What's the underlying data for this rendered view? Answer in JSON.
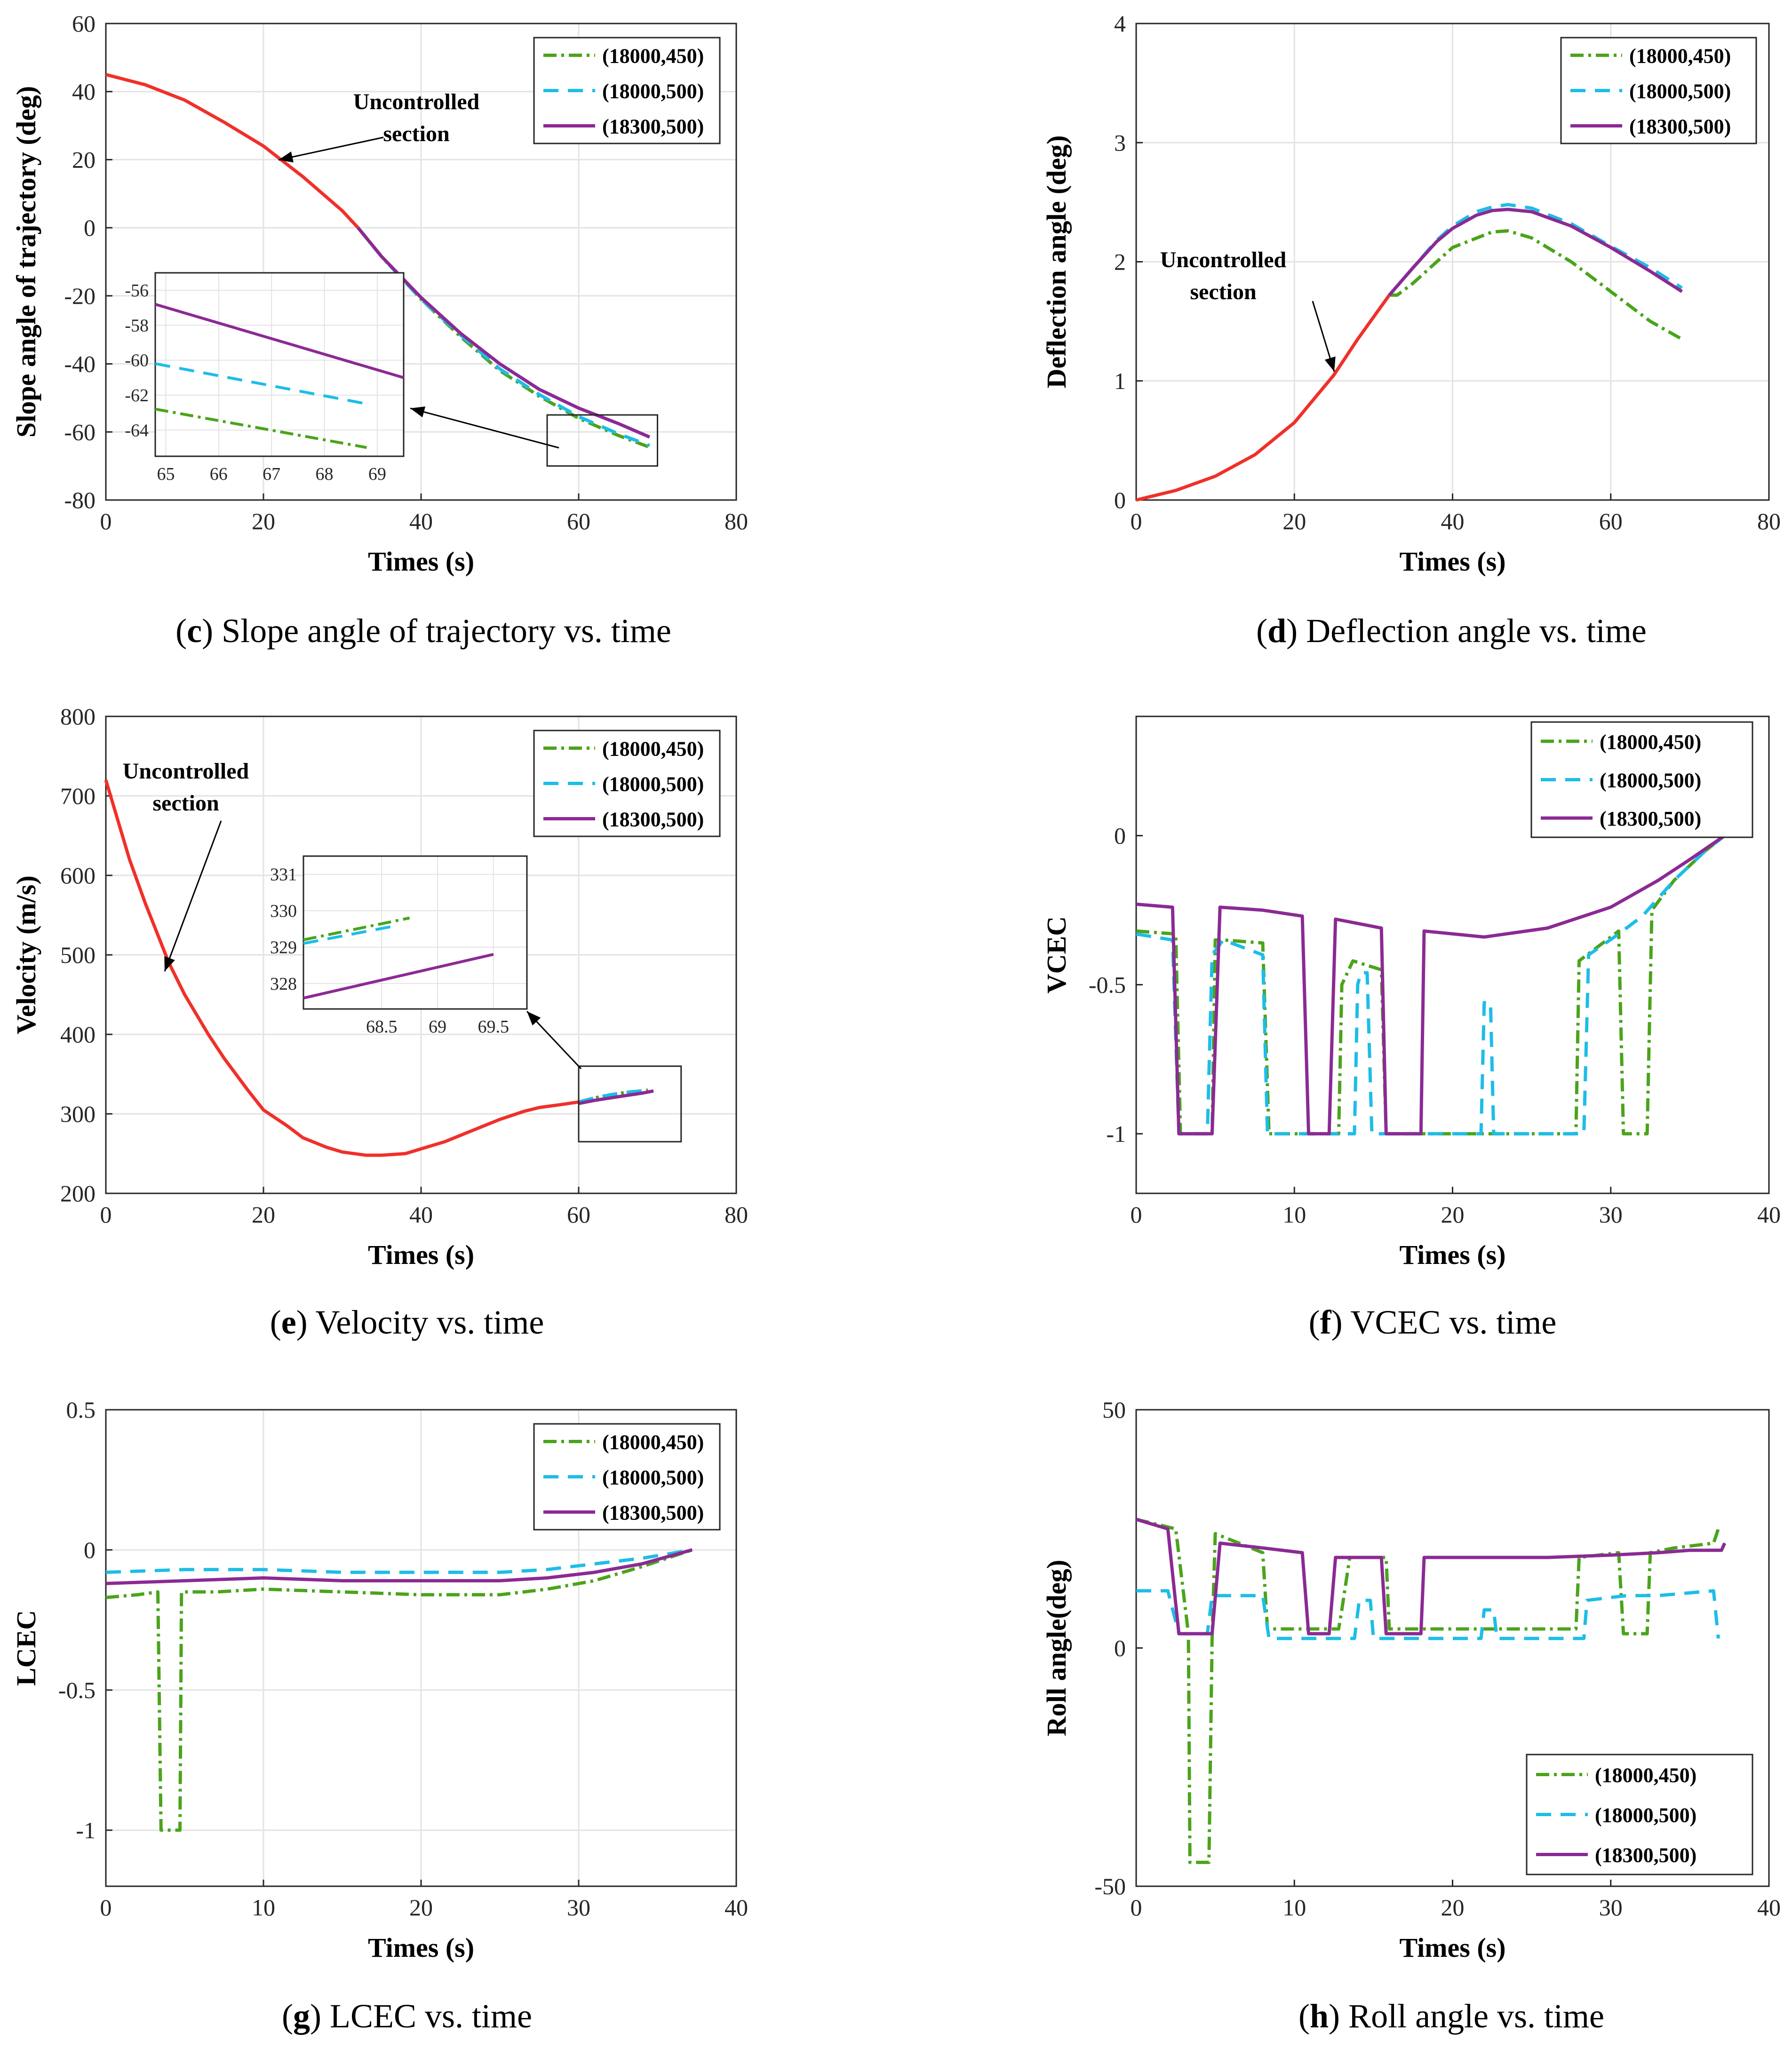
{
  "colors": {
    "series_450": "#4aa41a",
    "series_500": "#1dbde8",
    "series_18300": "#8b2a94",
    "uncontrolled": "#f0302a",
    "grid": "#e3e3e3",
    "axis": "#262626"
  },
  "legend_labels": [
    "(18000,450)",
    "(18000,500)",
    "(18300,500)"
  ],
  "chart_data": [
    {
      "id": "c",
      "type": "line",
      "caption_letter": "c",
      "caption_text": " Slope angle of trajectory vs. time",
      "xlabel": "Times (s)",
      "ylabel": "Slope angle of trajectory (deg)",
      "xlim": [
        0,
        80
      ],
      "ylim": [
        -80,
        60
      ],
      "xticks": [
        "0",
        "20",
        "40",
        "60",
        "80"
      ],
      "yticks": [
        "-80",
        "-60",
        "-40",
        "-20",
        "0",
        "20",
        "40",
        "60"
      ],
      "annotation": [
        "Uncontrolled",
        "section"
      ],
      "uncontrolled": {
        "x": [
          0,
          5,
          10,
          15,
          20,
          25,
          30,
          32
        ],
        "y": [
          45,
          42,
          37.5,
          31,
          24,
          15,
          5,
          0
        ]
      },
      "series": [
        {
          "name": "(18000,450)",
          "x": [
            32,
            35,
            40,
            45,
            50,
            55,
            60,
            65,
            69
          ],
          "y": [
            0,
            -8.5,
            -21,
            -32,
            -42,
            -49.5,
            -56,
            -61,
            -64.5
          ]
        },
        {
          "name": "(18000,500)",
          "x": [
            32,
            35,
            40,
            45,
            50,
            55,
            60,
            65,
            69
          ],
          "y": [
            0,
            -8.5,
            -21,
            -31.5,
            -41.5,
            -49,
            -55.5,
            -60.5,
            -64
          ]
        },
        {
          "name": "(18300,500)",
          "x": [
            32,
            35,
            40,
            45,
            50,
            55,
            60,
            65,
            69
          ],
          "y": [
            0,
            -8.5,
            -20.5,
            -31,
            -40,
            -47.5,
            -53,
            -57.5,
            -61.5
          ]
        }
      ],
      "inset": {
        "xlim": [
          64.8,
          69.5
        ],
        "ylim": [
          -65.5,
          -55
        ],
        "xticks": [
          "65",
          "66",
          "67",
          "68",
          "69"
        ],
        "yticks": [
          "-64",
          "-62",
          "-60",
          "-58",
          "-56"
        ],
        "series": [
          {
            "name": "(18000,450)",
            "x": [
              64.8,
              68.8
            ],
            "y": [
              -62.8,
              -65
            ]
          },
          {
            "name": "(18000,500)",
            "x": [
              64.8,
              68.8
            ],
            "y": [
              -60.2,
              -62.5
            ]
          },
          {
            "name": "(18300,500)",
            "x": [
              64.8,
              69.5
            ],
            "y": [
              -56.8,
              -61
            ]
          }
        ]
      }
    },
    {
      "id": "d",
      "type": "line",
      "caption_letter": "d",
      "caption_text": " Deflection angle vs. time",
      "xlabel": "Times (s)",
      "ylabel": "Deflection angle (deg)",
      "xlim": [
        0,
        80
      ],
      "ylim": [
        0,
        4
      ],
      "xticks": [
        "0",
        "20",
        "40",
        "60",
        "80"
      ],
      "yticks": [
        "0",
        "1",
        "2",
        "3",
        "4"
      ],
      "annotation": [
        "Uncontrolled",
        "section"
      ],
      "uncontrolled": {
        "x": [
          0,
          5,
          10,
          15,
          20,
          25,
          28,
          32
        ],
        "y": [
          0,
          0.08,
          0.2,
          0.38,
          0.65,
          1.05,
          1.35,
          1.72
        ]
      },
      "series": [
        {
          "name": "(18000,450)",
          "x": [
            32,
            33,
            35,
            38,
            40,
            45,
            47,
            50,
            55,
            60,
            65,
            69
          ],
          "y": [
            1.72,
            1.72,
            1.82,
            2.0,
            2.12,
            2.25,
            2.26,
            2.2,
            2.0,
            1.75,
            1.5,
            1.35
          ]
        },
        {
          "name": "(18000,500)",
          "x": [
            32,
            35,
            38,
            40,
            43,
            45,
            47,
            50,
            55,
            60,
            65,
            69
          ],
          "y": [
            1.72,
            1.95,
            2.18,
            2.3,
            2.42,
            2.46,
            2.48,
            2.45,
            2.32,
            2.13,
            1.95,
            1.78
          ]
        },
        {
          "name": "(18300,500)",
          "x": [
            32,
            35,
            38,
            40,
            43,
            45,
            47,
            50,
            55,
            60,
            65,
            69
          ],
          "y": [
            1.72,
            1.95,
            2.17,
            2.28,
            2.39,
            2.43,
            2.44,
            2.42,
            2.3,
            2.12,
            1.92,
            1.75
          ]
        }
      ]
    },
    {
      "id": "e",
      "type": "line",
      "caption_letter": "e",
      "caption_text": " Velocity vs. time",
      "xlabel": "Times (s)",
      "ylabel": "Velocity (m/s)",
      "xlim": [
        0,
        80
      ],
      "ylim": [
        200,
        800
      ],
      "xticks": [
        "0",
        "20",
        "40",
        "60",
        "80"
      ],
      "yticks": [
        "200",
        "300",
        "400",
        "500",
        "600",
        "700",
        "800"
      ],
      "annotation": [
        "Uncontrolled",
        "section"
      ],
      "uncontrolled": {
        "x": [
          0,
          3,
          5,
          8,
          10,
          13,
          15,
          18,
          20,
          23,
          25,
          28,
          30,
          33,
          35,
          38,
          40,
          43,
          45,
          48,
          50,
          53,
          55,
          58,
          60
        ],
        "y": [
          720,
          620,
          565,
          490,
          450,
          400,
          370,
          330,
          305,
          285,
          270,
          258,
          252,
          248,
          248,
          250,
          256,
          265,
          273,
          285,
          293,
          303,
          308,
          312,
          315
        ]
      },
      "series": [
        {
          "name": "(18000,450)",
          "x": [
            60,
            62,
            64,
            66,
            68.8
          ],
          "y": [
            315,
            320,
            324,
            327,
            329.8
          ]
        },
        {
          "name": "(18000,500)",
          "x": [
            60,
            62,
            64,
            66,
            68.8
          ],
          "y": [
            315,
            320,
            324,
            327,
            329.6
          ]
        },
        {
          "name": "(18300,500)",
          "x": [
            60,
            62,
            64,
            66,
            68,
            69.5
          ],
          "y": [
            313,
            317,
            320,
            323,
            326,
            328.8
          ]
        }
      ],
      "inset": {
        "xlim": [
          67.8,
          69.8
        ],
        "ylim": [
          327.3,
          331.5
        ],
        "xticks": [
          "68.5",
          "69",
          "69.5"
        ],
        "yticks": [
          "328",
          "329",
          "330",
          "331"
        ],
        "series": [
          {
            "name": "(18000,450)",
            "x": [
              67.8,
              68.75
            ],
            "y": [
              329.2,
              329.8
            ]
          },
          {
            "name": "(18000,500)",
            "x": [
              67.8,
              68.65
            ],
            "y": [
              329.1,
              329.6
            ]
          },
          {
            "name": "(18300,500)",
            "x": [
              67.8,
              69.5
            ],
            "y": [
              327.6,
              328.8
            ]
          }
        ]
      }
    },
    {
      "id": "f",
      "type": "line",
      "caption_letter": "f",
      "caption_text": " VCEC vs. time",
      "xlabel": "Times (s)",
      "ylabel": "VCEC",
      "xlim": [
        0,
        40
      ],
      "ylim": [
        -1.2,
        0.4
      ],
      "xticks": [
        "0",
        "10",
        "20",
        "30",
        "40"
      ],
      "yticks": [
        "-1",
        "-0.5",
        "0"
      ],
      "series": [
        {
          "name": "(18000,450)",
          "x": [
            0,
            2.5,
            2.8,
            4.8,
            5.0,
            5.5,
            8.0,
            8.4,
            12.8,
            13.0,
            13.7,
            15.5,
            15.8,
            27.8,
            28.0,
            30.5,
            30.8,
            32.3,
            32.6,
            34,
            36,
            37.2
          ],
          "y": [
            -0.32,
            -0.33,
            -1,
            -1,
            -0.35,
            -0.35,
            -0.36,
            -1,
            -1,
            -0.5,
            -0.42,
            -0.45,
            -1,
            -1,
            -0.42,
            -0.32,
            -1,
            -1,
            -0.25,
            -0.15,
            -0.05,
            0
          ]
        },
        {
          "name": "(18000,500)",
          "x": [
            0,
            2.3,
            2.7,
            4.5,
            4.8,
            5.5,
            8.0,
            8.3,
            13.8,
            14.0,
            14.2,
            14.6,
            14.9,
            21.8,
            22.0,
            22.4,
            22.6,
            28.3,
            28.6,
            30.5,
            32,
            34,
            36,
            37.2
          ],
          "y": [
            -0.33,
            -0.35,
            -1,
            -1,
            -0.4,
            -0.35,
            -0.4,
            -1,
            -1,
            -0.5,
            -0.46,
            -0.46,
            -1,
            -1,
            -0.56,
            -0.56,
            -1,
            -1,
            -0.4,
            -0.33,
            -0.27,
            -0.15,
            -0.05,
            0
          ]
        },
        {
          "name": "(18300,500)",
          "x": [
            0,
            2.3,
            2.7,
            4.8,
            5.3,
            8.0,
            10.5,
            10.9,
            12.2,
            12.6,
            15.5,
            15.8,
            18.0,
            18.2,
            22,
            26,
            30,
            33,
            35,
            37.2
          ],
          "y": [
            -0.23,
            -0.24,
            -1,
            -1,
            -0.24,
            -0.25,
            -0.27,
            -1,
            -1,
            -0.28,
            -0.31,
            -1,
            -1,
            -0.32,
            -0.34,
            -0.31,
            -0.24,
            -0.15,
            -0.08,
            0
          ]
        }
      ]
    },
    {
      "id": "g",
      "type": "line",
      "caption_letter": "g",
      "caption_text": " LCEC vs. time",
      "xlabel": "Times (s)",
      "ylabel": "LCEC",
      "xlim": [
        0,
        40
      ],
      "ylim": [
        -1.2,
        0.5
      ],
      "xticks": [
        "0",
        "10",
        "20",
        "30",
        "40"
      ],
      "yticks": [
        "-1",
        "-0.5",
        "0",
        "0.5"
      ],
      "series": [
        {
          "name": "(18000,450)",
          "x": [
            0,
            2,
            3.3,
            3.5,
            4.7,
            4.8,
            7,
            10,
            15,
            20,
            25,
            28,
            31,
            34,
            37.2
          ],
          "y": [
            -0.17,
            -0.16,
            -0.15,
            -1,
            -1,
            -0.15,
            -0.15,
            -0.14,
            -0.15,
            -0.16,
            -0.16,
            -0.14,
            -0.11,
            -0.06,
            0
          ]
        },
        {
          "name": "(18000,500)",
          "x": [
            0,
            5,
            10,
            15,
            20,
            25,
            28,
            31,
            34,
            37.2
          ],
          "y": [
            -0.08,
            -0.07,
            -0.07,
            -0.08,
            -0.08,
            -0.08,
            -0.07,
            -0.05,
            -0.03,
            0
          ]
        },
        {
          "name": "(18300,500)",
          "x": [
            0,
            5,
            10,
            15,
            20,
            25,
            28,
            31,
            34,
            37.2
          ],
          "y": [
            -0.12,
            -0.11,
            -0.1,
            -0.11,
            -0.11,
            -0.11,
            -0.1,
            -0.08,
            -0.05,
            0
          ]
        }
      ]
    },
    {
      "id": "h",
      "type": "line",
      "caption_letter": "h",
      "caption_text": " Roll angle vs. time",
      "xlabel": "Times (s)",
      "ylabel": "Roll angle(deg)",
      "xlim": [
        0,
        40
      ],
      "ylim": [
        -50,
        50
      ],
      "xticks": [
        "0",
        "10",
        "20",
        "30",
        "40"
      ],
      "yticks": [
        "-50",
        "0",
        "50"
      ],
      "legend_position": "bottom-right",
      "series": [
        {
          "name": "(18000,450)",
          "x": [
            0,
            2.5,
            3.3,
            3.4,
            4.6,
            4.8,
            5.0,
            8.0,
            8.3,
            12.8,
            13.0,
            13.5,
            15.8,
            16.0,
            27.8,
            28.0,
            30.5,
            30.8,
            32.3,
            32.5,
            34,
            36.5,
            36.8
          ],
          "y": [
            27,
            25,
            3,
            -45,
            -45,
            2,
            24,
            20,
            4,
            4,
            8,
            19,
            19,
            4,
            4,
            19,
            20,
            3,
            3,
            20,
            21,
            22,
            25
          ]
        },
        {
          "name": "(18000,500)",
          "x": [
            0,
            2,
            2.7,
            4.5,
            4.8,
            5.3,
            8.0,
            8.4,
            13.8,
            14.1,
            14.8,
            15,
            21.8,
            22.0,
            22.6,
            22.8,
            28.3,
            28.5,
            31,
            33,
            36.5,
            36.8
          ],
          "y": [
            12,
            12,
            3,
            3,
            11,
            11,
            11,
            2,
            2,
            10,
            10,
            2,
            2,
            8,
            8,
            2,
            2,
            10,
            11,
            11,
            12,
            2
          ]
        },
        {
          "name": "(18300,500)",
          "x": [
            0,
            2,
            2.7,
            4.8,
            5.3,
            8.0,
            10.5,
            10.9,
            12.2,
            12.6,
            15.5,
            15.8,
            18.0,
            18.2,
            22,
            26,
            30,
            33,
            35,
            37.0,
            37.2
          ],
          "y": [
            27,
            25,
            3,
            3,
            22,
            21,
            20,
            3,
            3,
            19,
            19,
            3,
            3,
            19,
            19,
            19,
            19.5,
            20,
            20.5,
            20.5,
            22
          ]
        }
      ]
    }
  ]
}
